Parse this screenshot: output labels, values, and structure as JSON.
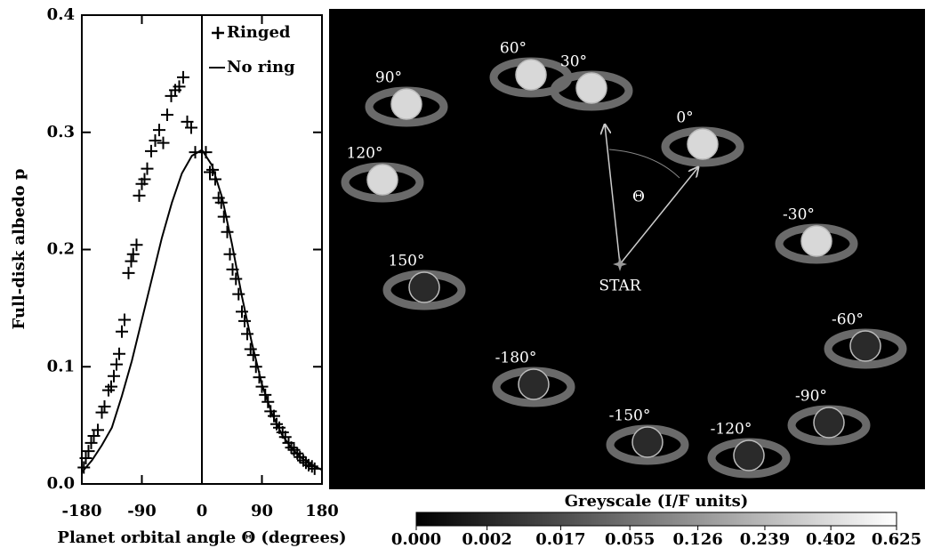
{
  "chart_data": {
    "type": "scatter",
    "xlabel": "Planet orbital angle Θ (degrees)",
    "ylabel": "Full-disk albedo p",
    "xlim": [
      -180,
      180
    ],
    "ylim": [
      0,
      0.4
    ],
    "xticks": [
      -180,
      -90,
      0,
      90,
      180
    ],
    "yticks": [
      {
        "value": 0,
        "label": "0.0"
      },
      0.1,
      0.2,
      0.3,
      0.4
    ],
    "reference_lines": [
      0
    ],
    "legend": "upper right",
    "series": [
      {
        "name": "Ringed",
        "kind": "scatter",
        "color": "#000000",
        "x": [
          -177,
          -174,
          -170,
          -166,
          -162,
          -156,
          -150,
          -146,
          -140,
          -136,
          -132,
          -128,
          -124,
          -120,
          -116,
          -110,
          -106,
          -103,
          -98,
          -94,
          -90,
          -86,
          -82,
          -76,
          -70,
          -64,
          -58,
          -52,
          -46,
          -40,
          -34,
          -28,
          -22,
          -16,
          -10,
          6,
          12,
          16,
          20,
          25,
          29,
          33,
          38,
          42,
          46,
          51,
          55,
          60,
          64,
          68,
          73,
          77,
          81,
          86,
          90,
          95,
          99,
          103,
          108,
          112,
          116,
          121,
          125,
          130,
          134,
          138,
          143,
          147,
          152,
          156,
          160,
          165,
          169
        ],
        "values": [
          0.014,
          0.022,
          0.028,
          0.035,
          0.041,
          0.046,
          0.061,
          0.066,
          0.08,
          0.083,
          0.092,
          0.102,
          0.111,
          0.13,
          0.14,
          0.18,
          0.19,
          0.196,
          0.204,
          0.246,
          0.256,
          0.26,
          0.269,
          0.284,
          0.293,
          0.302,
          0.291,
          0.315,
          0.331,
          0.336,
          0.339,
          0.347,
          0.309,
          0.304,
          0.283,
          0.283,
          0.266,
          0.268,
          0.26,
          0.244,
          0.24,
          0.228,
          0.215,
          0.196,
          0.183,
          0.175,
          0.162,
          0.147,
          0.139,
          0.128,
          0.115,
          0.11,
          0.1,
          0.091,
          0.083,
          0.076,
          0.07,
          0.062,
          0.058,
          0.051,
          0.048,
          0.044,
          0.04,
          0.035,
          0.031,
          0.029,
          0.026,
          0.023,
          0.02,
          0.018,
          0.016,
          0.015,
          0.013
        ]
      },
      {
        "name": "No ring",
        "kind": "line",
        "color": "#000000",
        "x": [
          -180,
          -165,
          -150,
          -135,
          -120,
          -105,
          -90,
          -75,
          -60,
          -45,
          -30,
          -15,
          0,
          15,
          30,
          45,
          60,
          75,
          90,
          105,
          120,
          135,
          150,
          165,
          180
        ],
        "values": [
          0.01,
          0.02,
          0.033,
          0.048,
          0.075,
          0.105,
          0.14,
          0.175,
          0.21,
          0.24,
          0.265,
          0.28,
          0.285,
          0.272,
          0.245,
          0.205,
          0.16,
          0.12,
          0.085,
          0.06,
          0.042,
          0.03,
          0.022,
          0.016,
          0.012
        ]
      }
    ]
  },
  "panel": {
    "angle_labels": [
      "60°",
      "90°",
      "30°",
      "0°",
      "120°",
      "-30°",
      "150°",
      "-60°",
      "-180°",
      "-90°",
      "-150°",
      "-120°"
    ],
    "star_label": "STAR",
    "angle_symbol": "Θ"
  },
  "colorbar": {
    "title": "Greyscale (I/F units)",
    "scale": "cube-root",
    "lim": [
      0,
      0.625
    ],
    "ticks": [
      {
        "value": 0,
        "label": "0.000"
      },
      0.002,
      0.017,
      0.055,
      0.126,
      0.239,
      0.402,
      0.625
    ]
  }
}
